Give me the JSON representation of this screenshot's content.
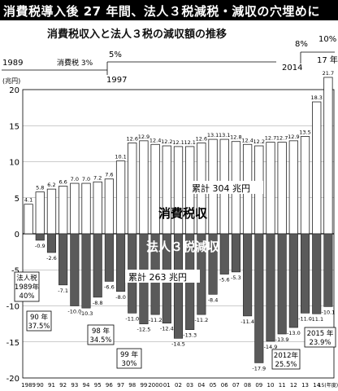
{
  "title": "消費税導入後 27 年間、法人３税減税・減収の穴埋めに",
  "subtitle": "消費税収入と法人３税の減収額の推移",
  "chart_data": {
    "type": "bar",
    "unit_label": "(兆円)",
    "ylim": [
      -20,
      20
    ],
    "yticks": [
      -20,
      -15,
      -10,
      -5,
      0,
      5,
      10,
      15,
      20
    ],
    "grid": true,
    "categories": [
      "1989",
      "90",
      "91",
      "92",
      "93",
      "94",
      "95",
      "96",
      "97",
      "98",
      "99",
      "2000",
      "01",
      "02",
      "03",
      "04",
      "05",
      "06",
      "07",
      "08",
      "09",
      "10",
      "11",
      "12",
      "13",
      "14",
      "15(年度)"
    ],
    "series": [
      {
        "name": "消費税収",
        "values": [
          4.1,
          5.8,
          6.2,
          6.6,
          7.0,
          7.0,
          7.2,
          7.6,
          10.1,
          12.6,
          12.9,
          12.4,
          12.2,
          12.1,
          12.1,
          12.6,
          13.1,
          13.1,
          12.8,
          12.4,
          12.2,
          12.7,
          12.7,
          12.9,
          13.5,
          18.3,
          21.7
        ],
        "labels": [
          "4.1",
          "5.8",
          "6.2",
          "6.6",
          "7.0",
          "7.0",
          "7.2",
          "7.6",
          "10.1",
          "12.6",
          "12.9",
          "12.4",
          "12.2",
          "12.1",
          "12.1",
          "12.6",
          "13.1",
          "13.1",
          "12.8",
          "12.4",
          "12.2",
          "12.7",
          "12.7",
          "12.9",
          "13.5",
          "18.3",
          "21.7"
        ],
        "color": "#ffffff"
      },
      {
        "name": "法人３税減収",
        "values": [
          0,
          -0.9,
          -2.6,
          -7.1,
          -10.0,
          -10.3,
          -8.8,
          -6.6,
          -8.0,
          -11.0,
          -12.5,
          -11.2,
          -12.4,
          -14.5,
          -13.3,
          -11.2,
          -8.4,
          -5.6,
          -5.3,
          -11.4,
          -17.9,
          -14.9,
          -13.9,
          -13.0,
          -11.0,
          -11.1,
          -10.1
        ],
        "labels": [
          "",
          "-0.9",
          "-2.6",
          "-7.1",
          "-10.0",
          "-10.3",
          "-8.8",
          "-6.6",
          "-8.0",
          "-11.0",
          "-12.5",
          "-11.2",
          "-12.4",
          "-14.5",
          "-13.3",
          "-11.2",
          "-8.4",
          "-5.6",
          "-5.3",
          "-11.4",
          "-17.9",
          "-14.9",
          "-13.9",
          "-13.0",
          "-11.0",
          "-11.1",
          "-10.1"
        ],
        "color": "#5a5a5a"
      }
    ],
    "band_labels": {
      "positive": "消費税収",
      "negative": "法人３税減収"
    },
    "totals": {
      "positive": "累計 304 兆円",
      "negative": "累計 263 兆円"
    },
    "tax_rate_notes": [
      {
        "year": "1989",
        "text": "消費税 3%"
      },
      {
        "year": "1997",
        "text": "5%"
      },
      {
        "year": "2014",
        "text": "8%"
      },
      {
        "year": "17 年",
        "text": "10%"
      }
    ],
    "callouts": [
      {
        "lines": [
          "法人税",
          "1989年",
          "40%"
        ]
      },
      {
        "lines": [
          "90 年",
          "37.5%"
        ]
      },
      {
        "lines": [
          "98 年",
          "34.5%"
        ]
      },
      {
        "lines": [
          "99 年",
          "30%"
        ]
      },
      {
        "lines": [
          "2012年",
          "25.5%"
        ]
      },
      {
        "lines": [
          "2015 年",
          "23.9%"
        ]
      }
    ]
  }
}
